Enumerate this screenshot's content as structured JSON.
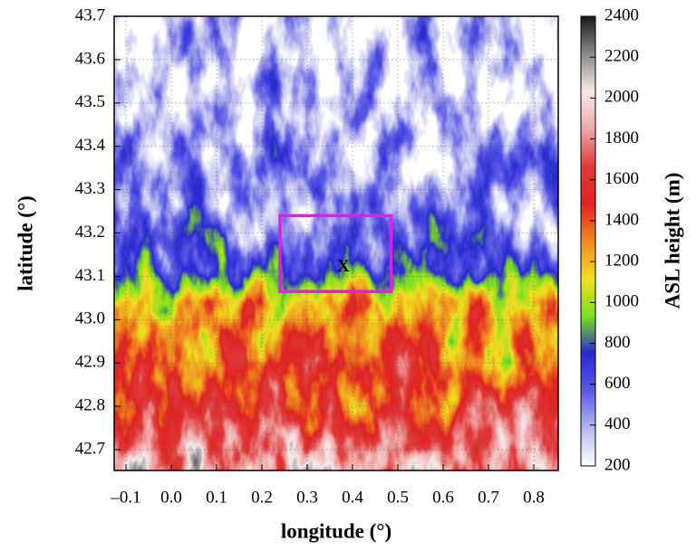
{
  "chart_data": {
    "type": "map",
    "xlabel": "longitude (°)",
    "ylabel": "latitude (°)",
    "xlim": [
      -0.126,
      0.854
    ],
    "ylim": [
      42.652,
      43.7
    ],
    "xticks": [
      {
        "value": -0.1,
        "label": "–0.1"
      },
      {
        "value": 0,
        "label": "0.0"
      },
      0.1,
      0.2,
      0.3,
      0.4,
      0.5,
      0.6,
      0.7,
      0.8
    ],
    "yticks": [
      42.7,
      42.8,
      42.9,
      {
        "value": 43,
        "label": "43.0"
      },
      43.1,
      43.2,
      43.3,
      43.4,
      43.5,
      43.6,
      43.7
    ],
    "grid": true,
    "colorbar": {
      "label": "ASL height (m)",
      "lim": [
        200,
        2400
      ],
      "ticks": [
        200,
        400,
        600,
        800,
        1000,
        1200,
        1400,
        1600,
        1800,
        2000,
        2200,
        2400
      ],
      "colormap": [
        "#ffffff",
        "#b8b8f0",
        "#5a5ae6",
        "#2828d2",
        "#7ae01e",
        "#f0e020",
        "#f08a20",
        "#e02222",
        "#e03a3a",
        "#f0a8a8",
        "#f6eaea",
        "#8a8a8a",
        "#1a1a1a"
      ]
    },
    "box": {
      "x": [
        0.24,
        0.485
      ],
      "y": [
        43.065,
        43.24
      ],
      "color": "#e020e0"
    },
    "marker": {
      "label": "X",
      "x": 0.38,
      "y": 43.12
    }
  }
}
